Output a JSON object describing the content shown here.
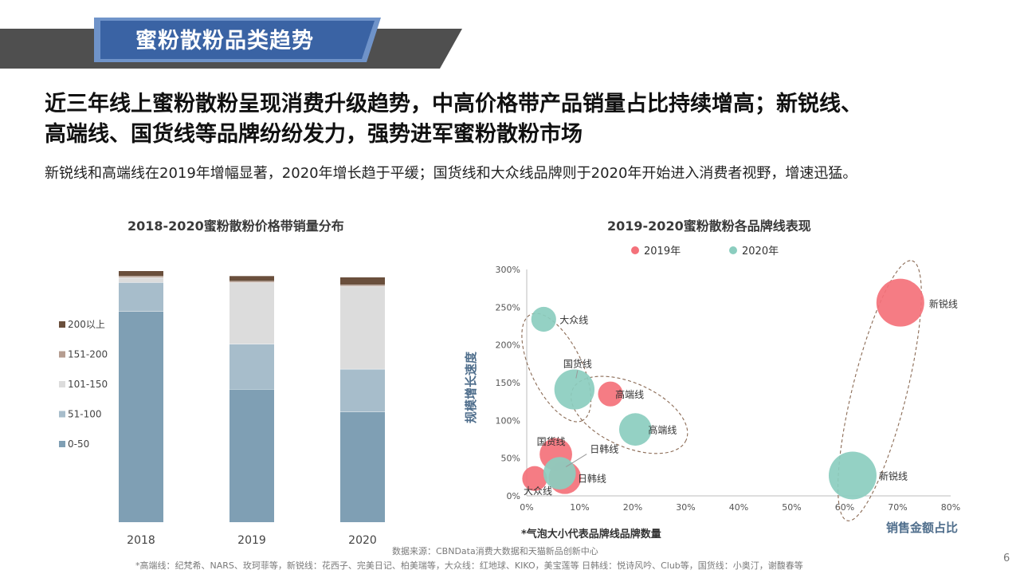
{
  "header": {
    "title": "蜜粉散粉品类趋势"
  },
  "headline": {
    "line1": "近三年线上蜜粉散粉呈现消费升级趋势，中高价格带产品销量占比持续增高；新锐线、",
    "line2": "高端线、国货线等品牌纷纷发力，强势进军蜜粉散粉市场"
  },
  "subtitle": "新锐线和高端线在2019年增幅显著，2020年增长趋于平缓；国货线和大众线品牌则于2020年开始进入消费者视野，增速迅猛。",
  "chart_data": [
    {
      "type": "bar",
      "stacked": true,
      "title": "2018-2020蜜粉散粉价格带销量分布",
      "categories": [
        "2018",
        "2019",
        "2020"
      ],
      "series": [
        {
          "name": "0-50",
          "color": "#7f9fb4",
          "values": [
            84.0,
            53.0,
            44.0
          ]
        },
        {
          "name": "51-100",
          "color": "#a7bdcb",
          "values": [
            11.5,
            18.0,
            17.0
          ]
        },
        {
          "name": "101-150",
          "color": "#dcdcdc",
          "values": [
            2.0,
            24.5,
            33.0
          ]
        },
        {
          "name": "151-200",
          "color": "#b59d90",
          "values": [
            0.5,
            0.5,
            0.5
          ]
        },
        {
          "name": "200以上",
          "color": "#6a4f3c",
          "values": [
            2.0,
            2.0,
            3.0
          ]
        }
      ],
      "ylim": [
        0,
        100
      ],
      "legend": "left"
    },
    {
      "type": "scatter",
      "bubble": true,
      "title": "2019-2020蜜粉散粉各品牌线表现",
      "xlabel": "销售金额占比",
      "ylabel": "规模增长速度",
      "xlim": [
        0,
        80
      ],
      "ylim": [
        0,
        300
      ],
      "x_ticks": [
        "0%",
        "10%",
        "20%",
        "30%",
        "40%",
        "50%",
        "60%",
        "70%",
        "80%"
      ],
      "y_ticks": [
        "0%",
        "50%",
        "100%",
        "150%",
        "200%",
        "250%",
        "300%"
      ],
      "legend": "top",
      "bubble_note": "*气泡大小代表品牌线品牌数量",
      "series": [
        {
          "name": "2019年",
          "color": "#f4717a",
          "points": [
            {
              "label": "新锐线",
              "x": 70.5,
              "y": 256,
              "size": 5
            },
            {
              "label": "高端线",
              "x": 15.8,
              "y": 135,
              "size": 2
            },
            {
              "label": "国货线",
              "x": 5.5,
              "y": 55,
              "size": 3
            },
            {
              "label": "日韩线",
              "x": 7.2,
              "y": 24,
              "size": 3
            },
            {
              "label": "大众线",
              "x": 1.5,
              "y": 23,
              "size": 2
            }
          ]
        },
        {
          "name": "2020年",
          "color": "#8bcdbf",
          "points": [
            {
              "label": "新锐线",
              "x": 61.5,
              "y": 27,
              "size": 5
            },
            {
              "label": "高端线",
              "x": 20.5,
              "y": 88,
              "size": 3
            },
            {
              "label": "国货线",
              "x": 9.0,
              "y": 141,
              "size": 4
            },
            {
              "label": "日韩线",
              "x": 6.2,
              "y": 30,
              "size": 3
            },
            {
              "label": "大众线",
              "x": 3.2,
              "y": 234,
              "size": 2
            }
          ]
        }
      ]
    }
  ],
  "footer": {
    "source": "数据来源：CBNData消费大数据和天猫新品创新中心",
    "note": "*高端线：纪梵希、NARS、玫珂菲等，新锐线：花西子、完美日记、柏美瑞等，大众线：红地球、KIKO，美宝莲等 日韩线：悦诗风吟、Club等，国货线：小奥汀，谢馥春等",
    "page_number": "6"
  },
  "colors": {
    "header_band": "#4f4f4f",
    "header_blue": "#3a63a4",
    "header_stripe": "#6f93c9"
  }
}
